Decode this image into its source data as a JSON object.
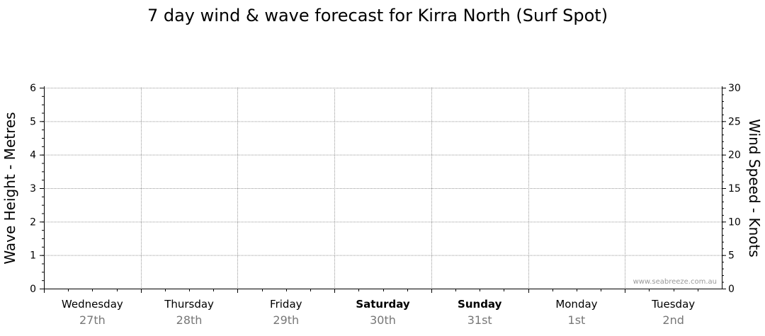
{
  "chart_data": {
    "type": "line",
    "title": "7 day wind & wave forecast for Kirra North (Surf Spot)",
    "ylabel_left": "Wave Height - Metres",
    "ylabel_right": "Wind Speed - Knots",
    "ylim_left": [
      0,
      6
    ],
    "ylim_right": [
      0,
      30
    ],
    "left_ticks": [
      "0",
      "1",
      "2",
      "3",
      "4",
      "5",
      "6"
    ],
    "right_ticks": [
      "0",
      "5",
      "10",
      "15",
      "20",
      "25",
      "30"
    ],
    "days": [
      {
        "name": "Wednesday",
        "date": "27th",
        "weekend": false
      },
      {
        "name": "Thursday",
        "date": "28th",
        "weekend": false
      },
      {
        "name": "Friday",
        "date": "29th",
        "weekend": false
      },
      {
        "name": "Saturday",
        "date": "30th",
        "weekend": true
      },
      {
        "name": "Sunday",
        "date": "31st",
        "weekend": true
      },
      {
        "name": "Monday",
        "date": "1st",
        "weekend": false
      },
      {
        "name": "Tuesday",
        "date": "2nd",
        "weekend": false
      }
    ],
    "series": [],
    "grid": true,
    "watermark": "www.seabreeze.com.au"
  }
}
